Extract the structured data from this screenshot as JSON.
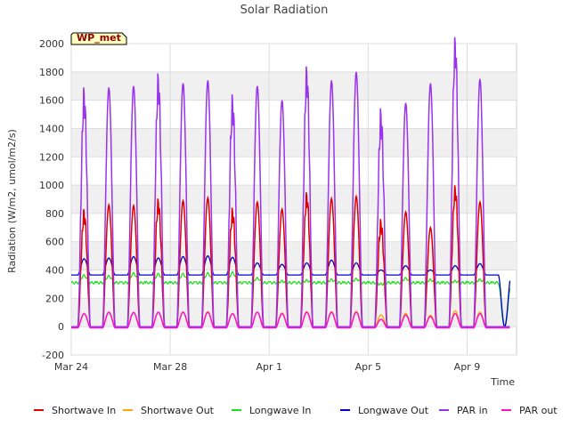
{
  "chart_data": {
    "type": "line",
    "title": "Solar Radiation",
    "xlabel": "Time",
    "ylabel": "Radiation (W/m2, umol/m2/s)",
    "ylim": [
      -200,
      2000
    ],
    "yticks": [
      -200,
      0,
      200,
      400,
      600,
      800,
      1000,
      1200,
      1400,
      1600,
      1800,
      2000
    ],
    "xlim": [
      "2024-03-24",
      "2024-04-11"
    ],
    "xticks": [
      {
        "date": "2024-03-24",
        "label": "Mar 24"
      },
      {
        "date": "2024-03-28",
        "label": "Mar 28"
      },
      {
        "date": "2024-04-01",
        "label": "Apr 1"
      },
      {
        "date": "2024-04-05",
        "label": "Apr 5"
      },
      {
        "date": "2024-04-09",
        "label": "Apr 9"
      }
    ],
    "grid": true,
    "badge": "WP_met",
    "legend_position": "bottom",
    "start_date": "2024-03-24",
    "daily_peaks": {
      "days": [
        "2024-03-24",
        "2024-03-25",
        "2024-03-26",
        "2024-03-27",
        "2024-03-28",
        "2024-03-29",
        "2024-03-30",
        "2024-03-31",
        "2024-04-01",
        "2024-04-02",
        "2024-04-03",
        "2024-04-04",
        "2024-04-05",
        "2024-04-06",
        "2024-04-07",
        "2024-04-08",
        "2024-04-09",
        "2024-04-10"
      ],
      "shortwave_in": [
        790,
        860,
        855,
        865,
        890,
        910,
        800,
        880,
        830,
        910,
        905,
        920,
        720,
        810,
        700,
        960,
        880,
        0
      ],
      "par_in": [
        1610,
        1690,
        1700,
        1710,
        1720,
        1740,
        1560,
        1700,
        1600,
        1760,
        1740,
        1800,
        1460,
        1580,
        1720,
        1970,
        1750,
        0
      ],
      "par_out": [
        100,
        110,
        108,
        110,
        110,
        110,
        100,
        110,
        100,
        110,
        110,
        110,
        60,
        90,
        80,
        100,
        100,
        0
      ],
      "longwave_out": [
        480,
        485,
        495,
        485,
        495,
        500,
        490,
        450,
        440,
        450,
        470,
        450,
        400,
        430,
        400,
        430,
        445,
        0
      ],
      "longwave_in": [
        360,
        355,
        375,
        370,
        370,
        375,
        380,
        340,
        320,
        325,
        330,
        335,
        300,
        340,
        330,
        320,
        330,
        0
      ]
    },
    "baselines": {
      "longwave_out": 365,
      "longwave_in": 310
    },
    "series": [
      {
        "key": "shortwave_in",
        "name": "Shortwave In",
        "color": "#dd0000"
      },
      {
        "key": "shortwave_out",
        "name": "Shortwave Out",
        "color": "#ffa500"
      },
      {
        "key": "longwave_in",
        "name": "Longwave In",
        "color": "#22dd22"
      },
      {
        "key": "longwave_out",
        "name": "Longwave Out",
        "color": "#0000cc"
      },
      {
        "key": "par_in",
        "name": "PAR in",
        "color": "#9933ee"
      },
      {
        "key": "par_out",
        "name": "PAR out",
        "color": "#ff11cc"
      }
    ]
  }
}
